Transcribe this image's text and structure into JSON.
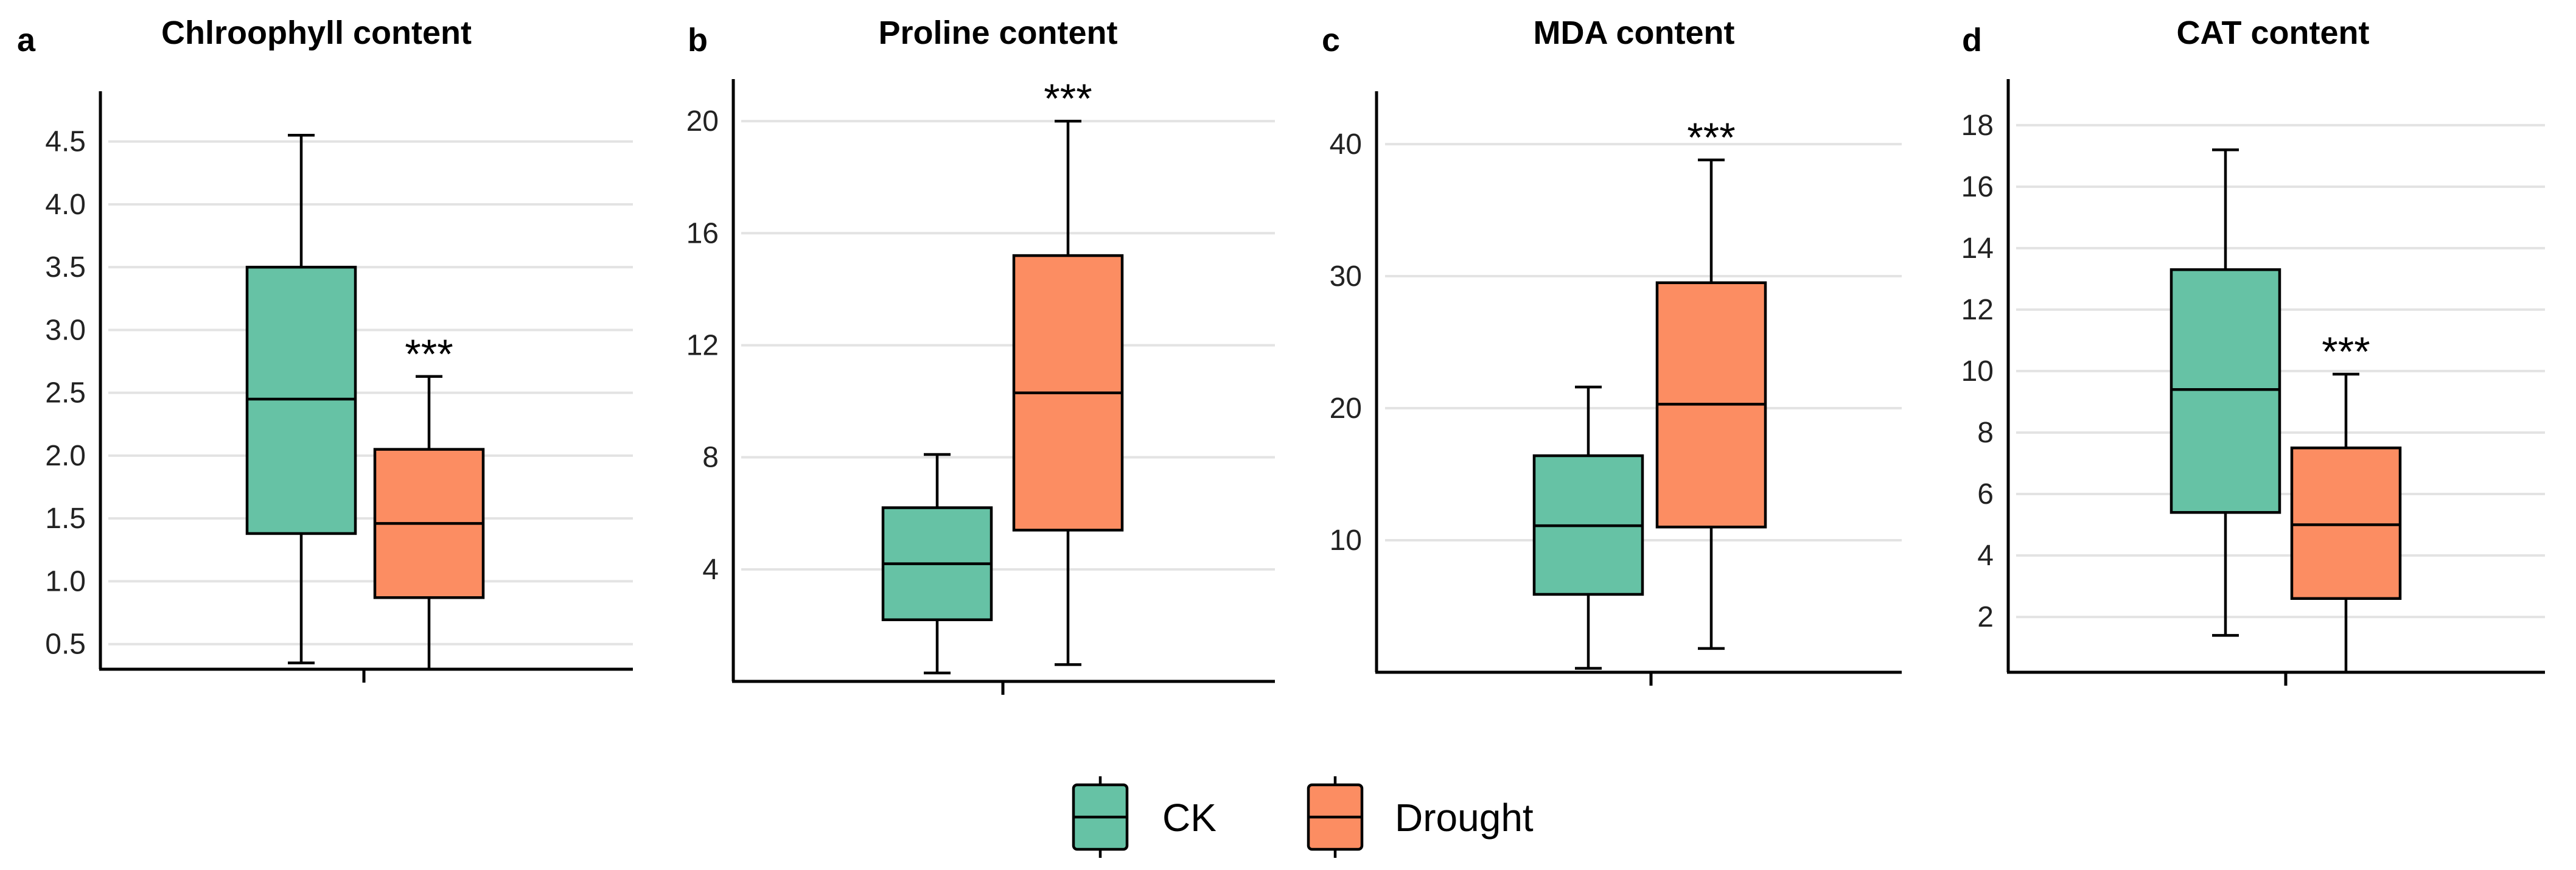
{
  "figure_legend": {
    "items": [
      {
        "label": "CK",
        "color": "#66C2A5"
      },
      {
        "label": "Drought",
        "color": "#FC8D62"
      }
    ]
  },
  "chart_data": [
    {
      "type": "box",
      "panel_letter": "a",
      "title": "Chlroophyll content",
      "xlabel": "",
      "ylabel": "",
      "ylim": [
        0.3,
        4.9
      ],
      "yticks": [
        0.5,
        1.0,
        1.5,
        2.0,
        2.5,
        3.0,
        3.5,
        4.0,
        4.5
      ],
      "ytick_labels": [
        "0.5",
        "1.0",
        "1.5",
        "2.0",
        "2.5",
        "3.0",
        "3.5",
        "4.0",
        "4.5"
      ],
      "grid": true,
      "series": [
        {
          "name": "CK",
          "color": "#66C2A5",
          "min": 0.35,
          "q1": 1.38,
          "median": 2.45,
          "q3": 3.5,
          "max": 4.55
        },
        {
          "name": "Drought",
          "color": "#FC8D62",
          "min": 0.3,
          "q1": 0.87,
          "median": 1.46,
          "q3": 2.05,
          "max": 2.63,
          "annotation": "***"
        }
      ]
    },
    {
      "type": "box",
      "panel_letter": "b",
      "title": "Proline content",
      "xlabel": "",
      "ylabel": "",
      "ylim": [
        0,
        21.5
      ],
      "yticks": [
        4,
        8,
        12,
        16,
        20
      ],
      "ytick_labels": [
        "4",
        "8",
        "12",
        "16",
        "20"
      ],
      "grid": true,
      "series": [
        {
          "name": "CK",
          "color": "#66C2A5",
          "min": 0.3,
          "q1": 2.2,
          "median": 4.2,
          "q3": 6.2,
          "max": 8.1
        },
        {
          "name": "Drought",
          "color": "#FC8D62",
          "min": 0.6,
          "q1": 5.4,
          "median": 10.3,
          "q3": 15.2,
          "max": 20.0,
          "annotation": "***"
        }
      ]
    },
    {
      "type": "box",
      "panel_letter": "c",
      "title": "MDA content",
      "xlabel": "",
      "ylabel": "",
      "ylim": [
        0,
        44
      ],
      "yticks": [
        10,
        20,
        30,
        40
      ],
      "ytick_labels": [
        "10",
        "20",
        "30",
        "40"
      ],
      "grid": true,
      "series": [
        {
          "name": "CK",
          "color": "#66C2A5",
          "min": 0.3,
          "q1": 5.9,
          "median": 11.1,
          "q3": 16.4,
          "max": 21.6
        },
        {
          "name": "Drought",
          "color": "#FC8D62",
          "min": 1.8,
          "q1": 11.0,
          "median": 20.3,
          "q3": 29.5,
          "max": 38.8,
          "annotation": "***"
        }
      ]
    },
    {
      "type": "box",
      "panel_letter": "d",
      "title": "CAT content",
      "xlabel": "",
      "ylabel": "",
      "ylim": [
        0.2,
        19.5
      ],
      "yticks": [
        2,
        4,
        6,
        8,
        10,
        12,
        14,
        16,
        18
      ],
      "ytick_labels": [
        "2",
        "4",
        "6",
        "8",
        "10",
        "12",
        "14",
        "16",
        "18"
      ],
      "grid": true,
      "series": [
        {
          "name": "CK",
          "color": "#66C2A5",
          "min": 1.4,
          "q1": 5.4,
          "median": 9.4,
          "q3": 13.3,
          "max": 17.2
        },
        {
          "name": "Drought",
          "color": "#FC8D62",
          "min": 0.2,
          "q1": 2.6,
          "median": 5.0,
          "q3": 7.5,
          "max": 9.9,
          "annotation": "***"
        }
      ]
    }
  ]
}
